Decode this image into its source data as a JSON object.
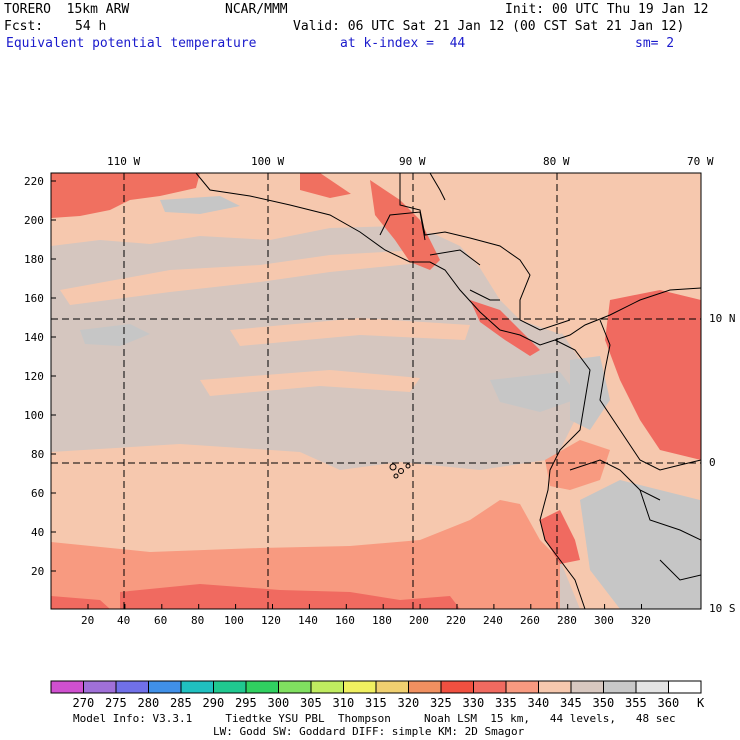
{
  "header": {
    "model": "TORERO  15km ARW",
    "org": "NCAR/MMM",
    "init": "Init: 00 UTC Thu 19 Jan 12",
    "fcst_label": "Fcst:",
    "fcst_value": "54 h",
    "valid": "Valid: 06 UTC Sat 21 Jan 12 (00 CST Sat 21 Jan 12)",
    "field": "Equivalent potential temperature",
    "level": "at k-index =  44",
    "smooth": "sm= 2"
  },
  "map": {
    "lon_labels": [
      "110 W",
      "100 W",
      "90 W",
      "80 W",
      "70 W"
    ],
    "lat_labels": [
      "10 N",
      "0",
      "10 S"
    ],
    "y_ticks": [
      "220",
      "200",
      "180",
      "160",
      "140",
      "120",
      "100",
      "80",
      "60",
      "40",
      "20"
    ],
    "x_ticks": [
      "20",
      "40",
      "60",
      "80",
      "100",
      "120",
      "140",
      "160",
      "180",
      "200",
      "220",
      "240",
      "260",
      "280",
      "300",
      "320"
    ]
  },
  "colorbar": {
    "labels": [
      "270",
      "275",
      "280",
      "285",
      "290",
      "295",
      "300",
      "305",
      "310",
      "315",
      "320",
      "325",
      "330",
      "335",
      "340",
      "345",
      "350",
      "355",
      "360"
    ],
    "unit": "K",
    "colors": [
      "#d050d0",
      "#a070d8",
      "#7070e8",
      "#4090e8",
      "#20c0c0",
      "#20c890",
      "#30d060",
      "#80e060",
      "#c0ec60",
      "#f0f060",
      "#f0d070",
      "#f09060",
      "#f05040",
      "#f06a60",
      "#f89a80",
      "#f6c8ae",
      "#d8c8c0",
      "#c8c8c8",
      "#e4e4e4",
      "#ffffff"
    ]
  },
  "footer": {
    "line1": "Model Info: V3.3.1     Tiedtke YSU PBL  Thompson     Noah LSM  15 km,   44 levels,   48 sec",
    "line2": "LW: Godd SW: Goddard DIFF: simple KM: 2D Smagor"
  }
}
